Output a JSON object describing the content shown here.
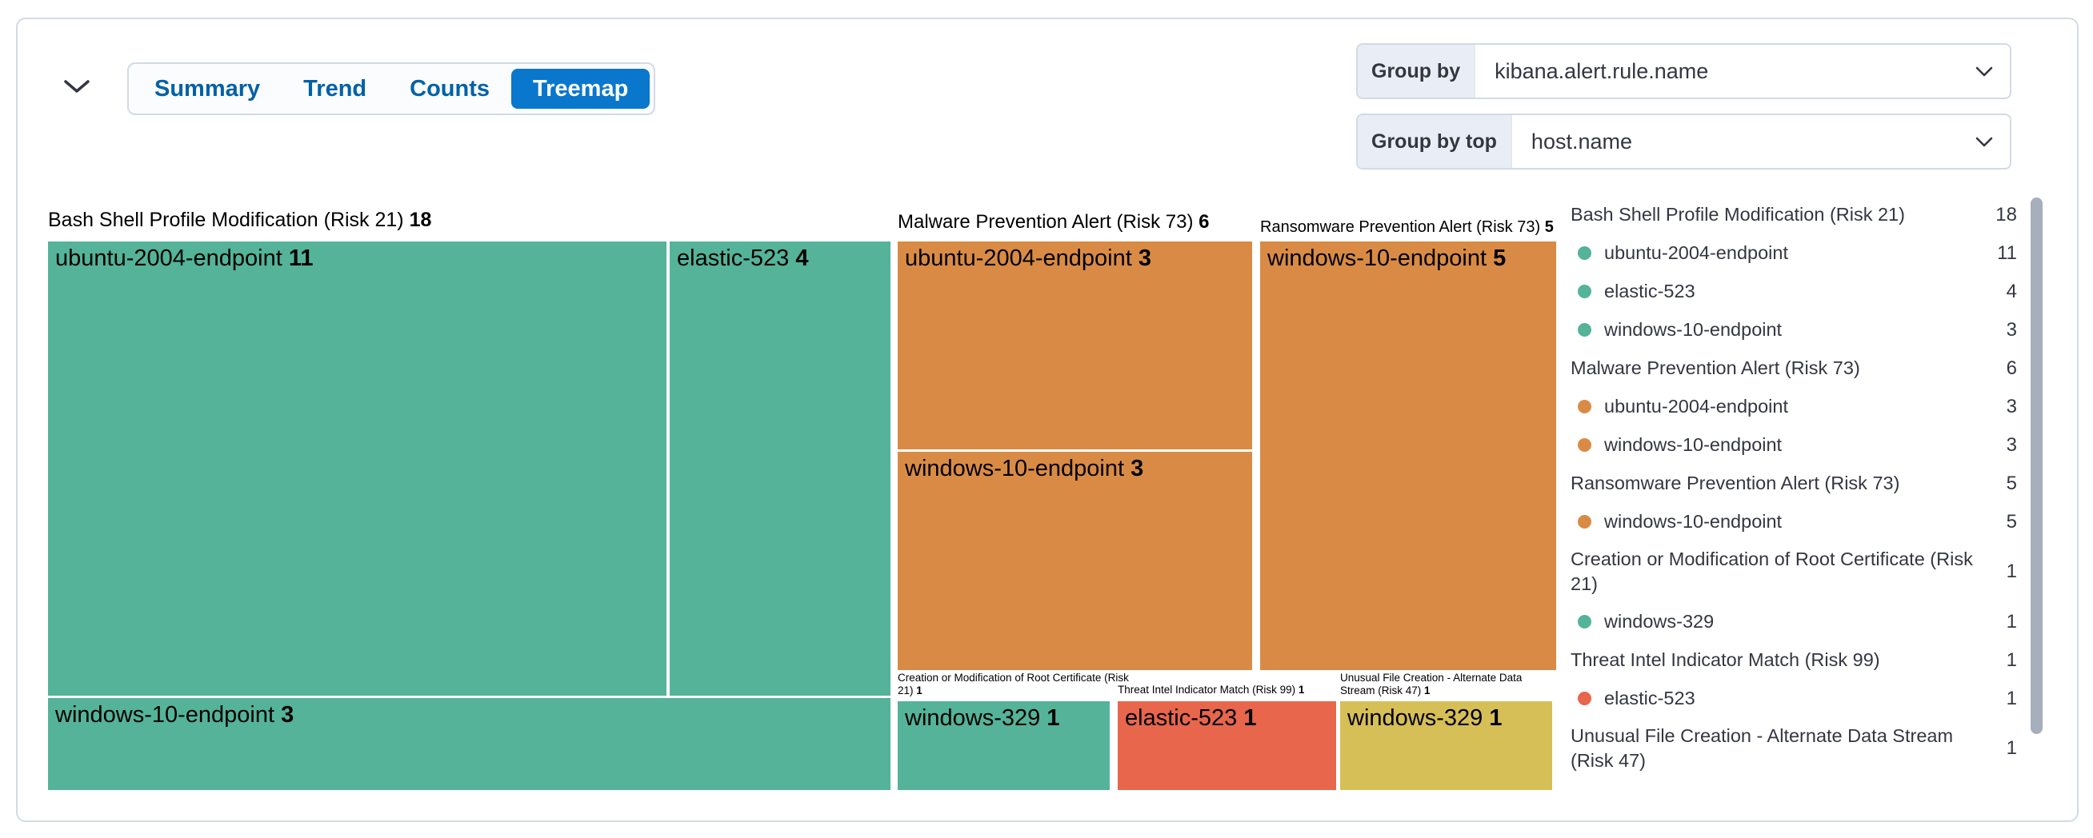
{
  "header": {
    "tabs": [
      {
        "label": "Summary",
        "selected": false
      },
      {
        "label": "Trend",
        "selected": false
      },
      {
        "label": "Counts",
        "selected": false
      },
      {
        "label": "Treemap",
        "selected": true
      }
    ]
  },
  "controls": {
    "group_by": {
      "label": "Group by",
      "value": "kibana.alert.rule.name"
    },
    "group_by_top": {
      "label": "Group by top",
      "value": "host.name"
    }
  },
  "colors": {
    "accent": "#0877CC",
    "green": "#54B399",
    "orange": "#D98B45",
    "red": "#E7664C",
    "yellow": "#D6BF57",
    "border": "#D3DAE6",
    "text": "#343741"
  },
  "chart_data": {
    "type": "treemap",
    "title": "Alerts by kibana.alert.rule.name, split by host.name",
    "groups": [
      {
        "name": "Bash Shell Profile Modification (Risk 21)",
        "total": 18,
        "color": "green",
        "children": [
          {
            "name": "ubuntu-2004-endpoint",
            "value": 11
          },
          {
            "name": "elastic-523",
            "value": 4
          },
          {
            "name": "windows-10-endpoint",
            "value": 3
          }
        ]
      },
      {
        "name": "Malware Prevention Alert (Risk 73)",
        "total": 6,
        "color": "orange",
        "children": [
          {
            "name": "ubuntu-2004-endpoint",
            "value": 3
          },
          {
            "name": "windows-10-endpoint",
            "value": 3
          }
        ]
      },
      {
        "name": "Ransomware Prevention Alert (Risk 73)",
        "total": 5,
        "color": "orange",
        "children": [
          {
            "name": "windows-10-endpoint",
            "value": 5
          }
        ]
      },
      {
        "name": "Creation or Modification of Root Certificate (Risk 21)",
        "total": 1,
        "color": "green",
        "children": [
          {
            "name": "windows-329",
            "value": 1
          }
        ]
      },
      {
        "name": "Threat Intel Indicator Match (Risk 99)",
        "total": 1,
        "color": "red",
        "children": [
          {
            "name": "elastic-523",
            "value": 1
          }
        ]
      },
      {
        "name": "Unusual File Creation - Alternate Data Stream (Risk 47)",
        "total": 1,
        "color": "yellow",
        "children": [
          {
            "name": "windows-329",
            "value": 1
          }
        ]
      }
    ]
  },
  "legend": {
    "rows": [
      {
        "label": "Bash Shell Profile Modification (Risk 21)",
        "count": "18",
        "dot": null,
        "wrap": false
      },
      {
        "label": "ubuntu-2004-endpoint",
        "count": "11",
        "dot": "green",
        "wrap": false
      },
      {
        "label": "elastic-523",
        "count": "4",
        "dot": "green",
        "wrap": false
      },
      {
        "label": "windows-10-endpoint",
        "count": "3",
        "dot": "green",
        "wrap": false
      },
      {
        "label": "Malware Prevention Alert (Risk 73)",
        "count": "6",
        "dot": null,
        "wrap": false
      },
      {
        "label": "ubuntu-2004-endpoint",
        "count": "3",
        "dot": "orange",
        "wrap": false
      },
      {
        "label": "windows-10-endpoint",
        "count": "3",
        "dot": "orange",
        "wrap": false
      },
      {
        "label": "Ransomware Prevention Alert (Risk 73)",
        "count": "5",
        "dot": null,
        "wrap": false
      },
      {
        "label": "windows-10-endpoint",
        "count": "5",
        "dot": "orange",
        "wrap": false
      },
      {
        "label": "Creation or Modification of Root Certificate (Risk 21)",
        "count": "1",
        "dot": null,
        "wrap": true
      },
      {
        "label": "windows-329",
        "count": "1",
        "dot": "green",
        "wrap": false
      },
      {
        "label": "Threat Intel Indicator Match (Risk 99)",
        "count": "1",
        "dot": null,
        "wrap": false
      },
      {
        "label": "elastic-523",
        "count": "1",
        "dot": "red",
        "wrap": false
      },
      {
        "label": "Unusual File Creation - Alternate Data Stream (Risk 47)",
        "count": "1",
        "dot": null,
        "wrap": true
      }
    ]
  }
}
